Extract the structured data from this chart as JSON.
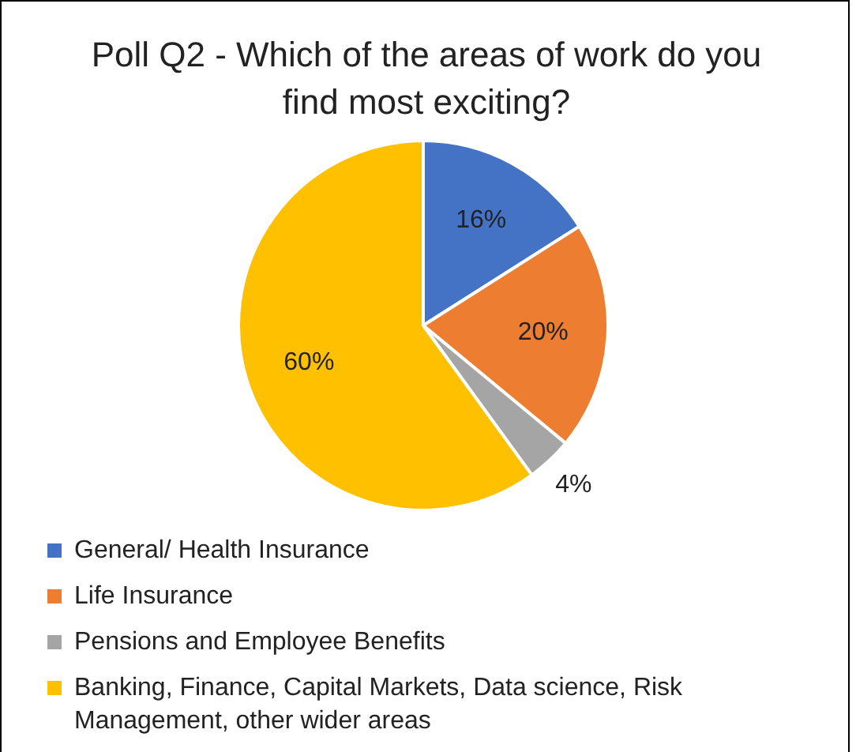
{
  "chart_data": {
    "type": "pie",
    "title": "Poll Q2 - Which of the areas of work do you find most exciting?",
    "categories": [
      "General/ Health Insurance",
      "Life Insurance",
      "Pensions and Employee Benefits",
      "Banking, Finance, Capital Markets, Data science, Risk Management, other wider areas"
    ],
    "values": [
      16,
      20,
      4,
      60
    ],
    "colors": [
      "#4472c4",
      "#ed7d31",
      "#a5a5a5",
      "#ffc000"
    ],
    "value_labels": [
      "16%",
      "20%",
      "4%",
      "60%"
    ],
    "legend": "bottom"
  }
}
